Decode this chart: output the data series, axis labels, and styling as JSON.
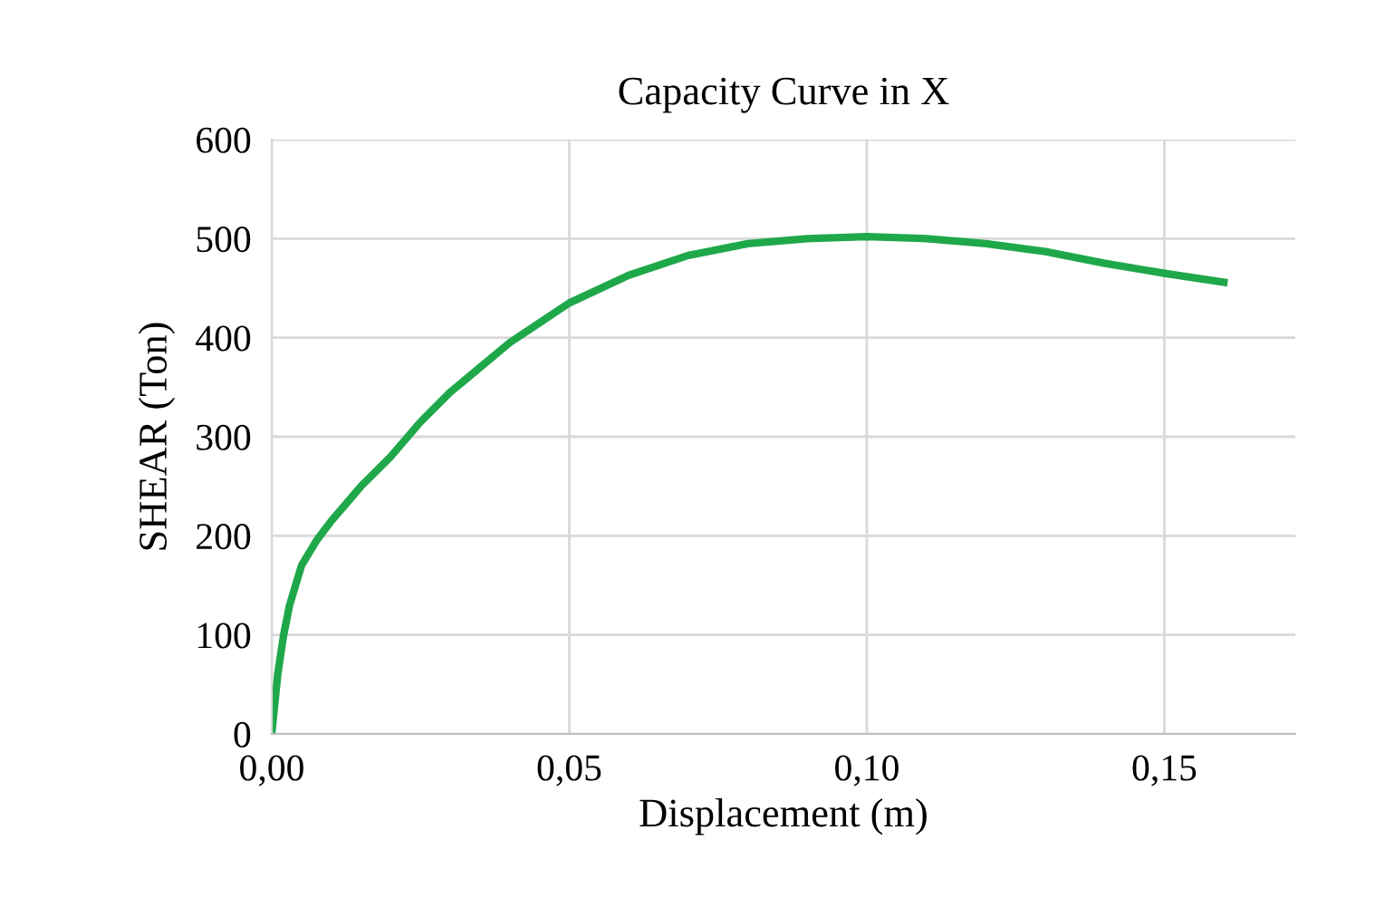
{
  "chart_data": {
    "type": "line",
    "title": "Capacity Curve in X",
    "xlabel": "Displacement (m)",
    "ylabel": "SHEAR (Ton)",
    "x": [
      0,
      0.001,
      0.002,
      0.003,
      0.005,
      0.0075,
      0.01,
      0.015,
      0.02,
      0.025,
      0.03,
      0.035,
      0.04,
      0.045,
      0.05,
      0.06,
      0.07,
      0.08,
      0.09,
      0.1,
      0.11,
      0.12,
      0.13,
      0.14,
      0.15,
      0.16
    ],
    "series": [
      {
        "color": "#1fa84a",
        "values": [
          0,
          60,
          100,
          130,
          170,
          195,
          215,
          250,
          280,
          315,
          345,
          370,
          395,
          415,
          435,
          463,
          483,
          495,
          500,
          502,
          500,
          495,
          487,
          475,
          465,
          456
        ]
      }
    ],
    "xlim": [
      0,
      0.172
    ],
    "ylim": [
      0,
      600
    ],
    "xticks": [
      {
        "value": 0,
        "label": "0,00"
      },
      {
        "value": 0.05,
        "label": "0,05"
      },
      {
        "value": 0.1,
        "label": "0,10"
      },
      {
        "value": 0.15,
        "label": "0,15"
      }
    ],
    "yticks": [
      0,
      100,
      200,
      300,
      400,
      500,
      600
    ],
    "grid": true,
    "marker": "none",
    "line_style": "solid"
  }
}
